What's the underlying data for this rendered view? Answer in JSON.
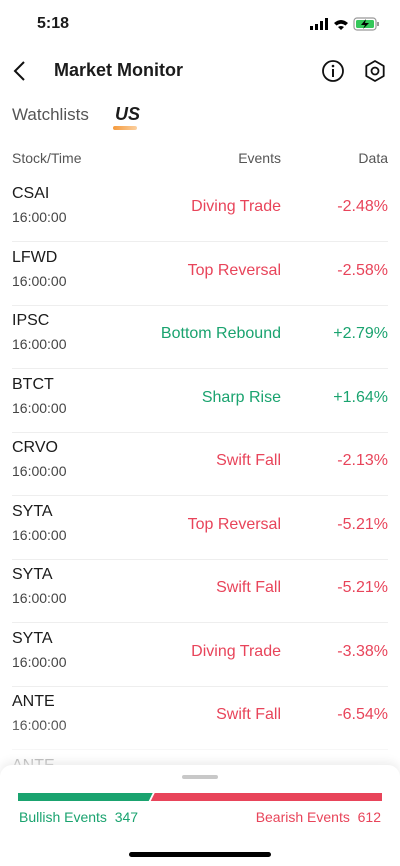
{
  "status_bar": {
    "time": "5:18"
  },
  "header": {
    "title": "Market Monitor"
  },
  "tabs": [
    "Watchlists",
    "US"
  ],
  "columns": [
    "Stock/Time",
    "Events",
    "Data"
  ],
  "rows": [
    {
      "stock": "CSAI",
      "time": "16:00:00",
      "event": "Diving Trade",
      "change": "-2.48%",
      "direction": "down"
    },
    {
      "stock": "LFWD",
      "time": "16:00:00",
      "event": "Top Reversal",
      "change": "-2.58%",
      "direction": "down"
    },
    {
      "stock": "IPSC",
      "time": "16:00:00",
      "event": "Bottom Rebound",
      "change": "+2.79%",
      "direction": "up"
    },
    {
      "stock": "BTCT",
      "time": "16:00:00",
      "event": "Sharp Rise",
      "change": "+1.64%",
      "direction": "up"
    },
    {
      "stock": "CRVO",
      "time": "16:00:00",
      "event": "Swift Fall",
      "change": "-2.13%",
      "direction": "down"
    },
    {
      "stock": "SYTA",
      "time": "16:00:00",
      "event": "Top Reversal",
      "change": "-5.21%",
      "direction": "down"
    },
    {
      "stock": "SYTA",
      "time": "16:00:00",
      "event": "Swift Fall",
      "change": "-5.21%",
      "direction": "down"
    },
    {
      "stock": "SYTA",
      "time": "16:00:00",
      "event": "Diving Trade",
      "change": "-3.38%",
      "direction": "down"
    },
    {
      "stock": "ANTE",
      "time": "16:00:00",
      "event": "Swift Fall",
      "change": "-6.54%",
      "direction": "down"
    }
  ],
  "partial_row": {
    "stock": "ANTE"
  },
  "summary": {
    "bullish_label": "Bullish Events",
    "bullish_count": 347,
    "bearish_label": "Bearish Events",
    "bearish_count": 612
  }
}
